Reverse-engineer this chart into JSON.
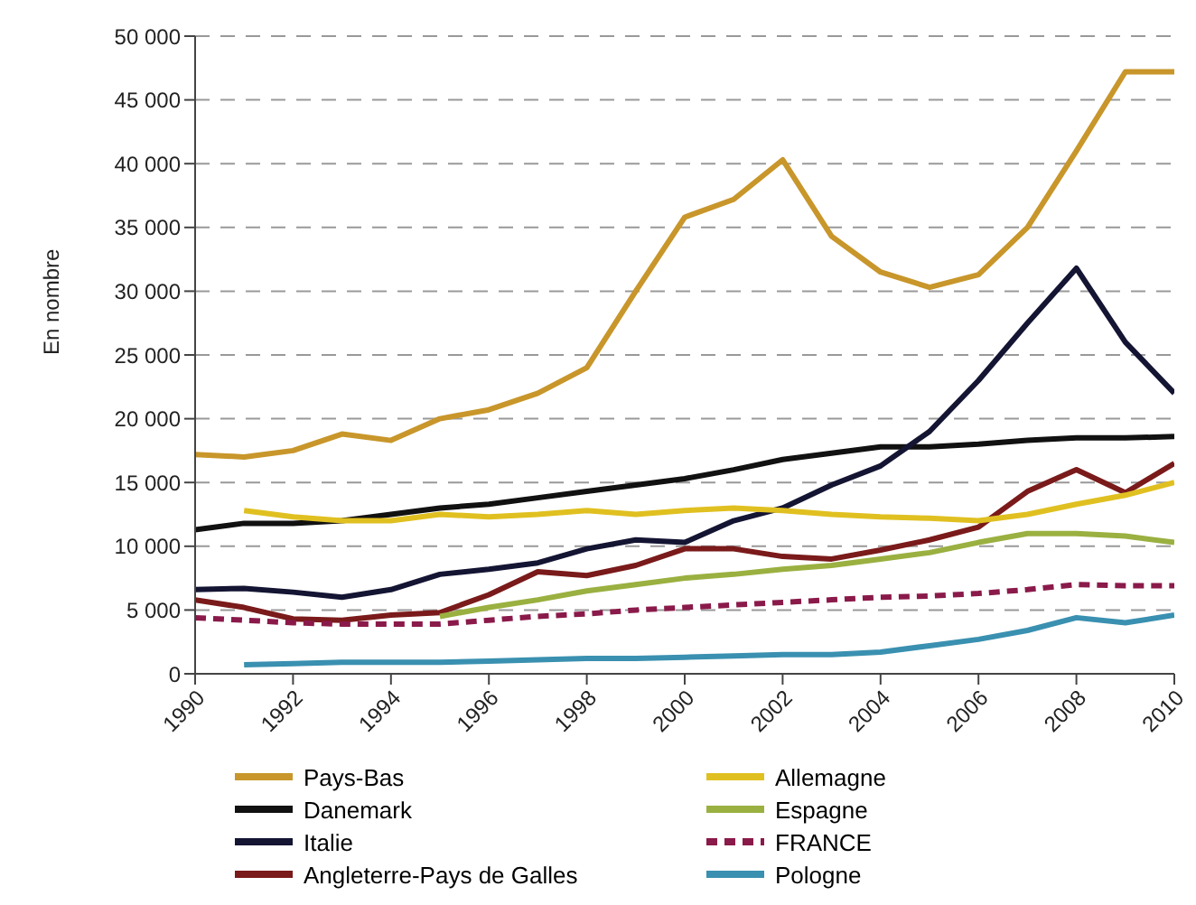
{
  "chart_data": {
    "type": "line",
    "ylabel": "En nombre",
    "x": [
      1990,
      1991,
      1992,
      1993,
      1994,
      1995,
      1996,
      1997,
      1998,
      1999,
      2000,
      2001,
      2002,
      2003,
      2004,
      2005,
      2006,
      2007,
      2008,
      2009,
      2010
    ],
    "xlim": [
      1990,
      2010
    ],
    "xticks": [
      1990,
      1992,
      1994,
      1996,
      1998,
      2000,
      2002,
      2004,
      2006,
      2008,
      2010
    ],
    "ylim": [
      0,
      50000
    ],
    "yticks": [
      0,
      {
        "value": 5000,
        "label": "5 000"
      },
      {
        "value": 10000,
        "label": "10 000"
      },
      {
        "value": 15000,
        "label": "15 000"
      },
      {
        "value": 20000,
        "label": "20 000"
      },
      {
        "value": 25000,
        "label": "25 000"
      },
      {
        "value": 30000,
        "label": "30 000"
      },
      {
        "value": 35000,
        "label": "35 000"
      },
      {
        "value": 40000,
        "label": "40 000"
      },
      {
        "value": 45000,
        "label": "45 000"
      },
      {
        "value": 50000,
        "label": "50 000"
      }
    ],
    "grid": "y",
    "legend": "bottom",
    "marker": "none",
    "series": [
      {
        "name": "Pays-Bas",
        "color": "#c8962a",
        "values": [
          17200,
          17000,
          17500,
          18800,
          18300,
          20000,
          20700,
          22000,
          24000,
          30000,
          35800,
          37200,
          40300,
          34300,
          31500,
          30300,
          31300,
          35000,
          41000,
          47200,
          47200
        ]
      },
      {
        "name": "Danemark",
        "color": "#111111",
        "values": [
          11300,
          11800,
          11800,
          12000,
          12500,
          13000,
          13300,
          13800,
          14300,
          14800,
          15300,
          16000,
          16800,
          17300,
          17800,
          17800,
          18000,
          18300,
          18500,
          18500,
          18600
        ]
      },
      {
        "name": "Italie",
        "color": "#141433",
        "values": [
          6600,
          6700,
          6400,
          6000,
          6600,
          7800,
          8200,
          8700,
          9800,
          10500,
          10300,
          12000,
          13000,
          14800,
          16300,
          19000,
          23000,
          27500,
          31800,
          26000,
          22000
        ]
      },
      {
        "name": "Angleterre-Pays de Galles",
        "color": "#7a1a1a",
        "values": [
          5800,
          5200,
          4300,
          4200,
          4600,
          4800,
          6200,
          8000,
          7700,
          8500,
          9800,
          9800,
          9200,
          9000,
          9700,
          10500,
          11500,
          14300,
          16000,
          14200,
          16500
        ]
      },
      {
        "name": "Allemagne",
        "color": "#e0c020",
        "values": [
          null,
          12800,
          12300,
          12000,
          12000,
          12500,
          12300,
          12500,
          12800,
          12500,
          12800,
          13000,
          12800,
          12500,
          12300,
          12200,
          12000,
          12500,
          13300,
          14000,
          15000
        ]
      },
      {
        "name": "Espagne",
        "color": "#9ab040",
        "values": [
          null,
          null,
          null,
          null,
          null,
          4500,
          5200,
          5800,
          6500,
          7000,
          7500,
          7800,
          8200,
          8500,
          9000,
          9500,
          10300,
          11000,
          11000,
          10800,
          10300
        ]
      },
      {
        "name": "FRANCE",
        "color": "#8a1a4a",
        "line_style": "dashed",
        "values": [
          4400,
          4200,
          4000,
          3900,
          3900,
          3900,
          4200,
          4500,
          4700,
          5000,
          5200,
          5400,
          5600,
          5800,
          6000,
          6100,
          6300,
          6600,
          7000,
          6900,
          6900
        ]
      },
      {
        "name": "Pologne",
        "color": "#3a90b0",
        "values": [
          null,
          700,
          800,
          900,
          900,
          900,
          1000,
          1100,
          1200,
          1200,
          1300,
          1400,
          1500,
          1500,
          1700,
          2200,
          2700,
          3400,
          4400,
          4000,
          4600
        ]
      }
    ]
  }
}
